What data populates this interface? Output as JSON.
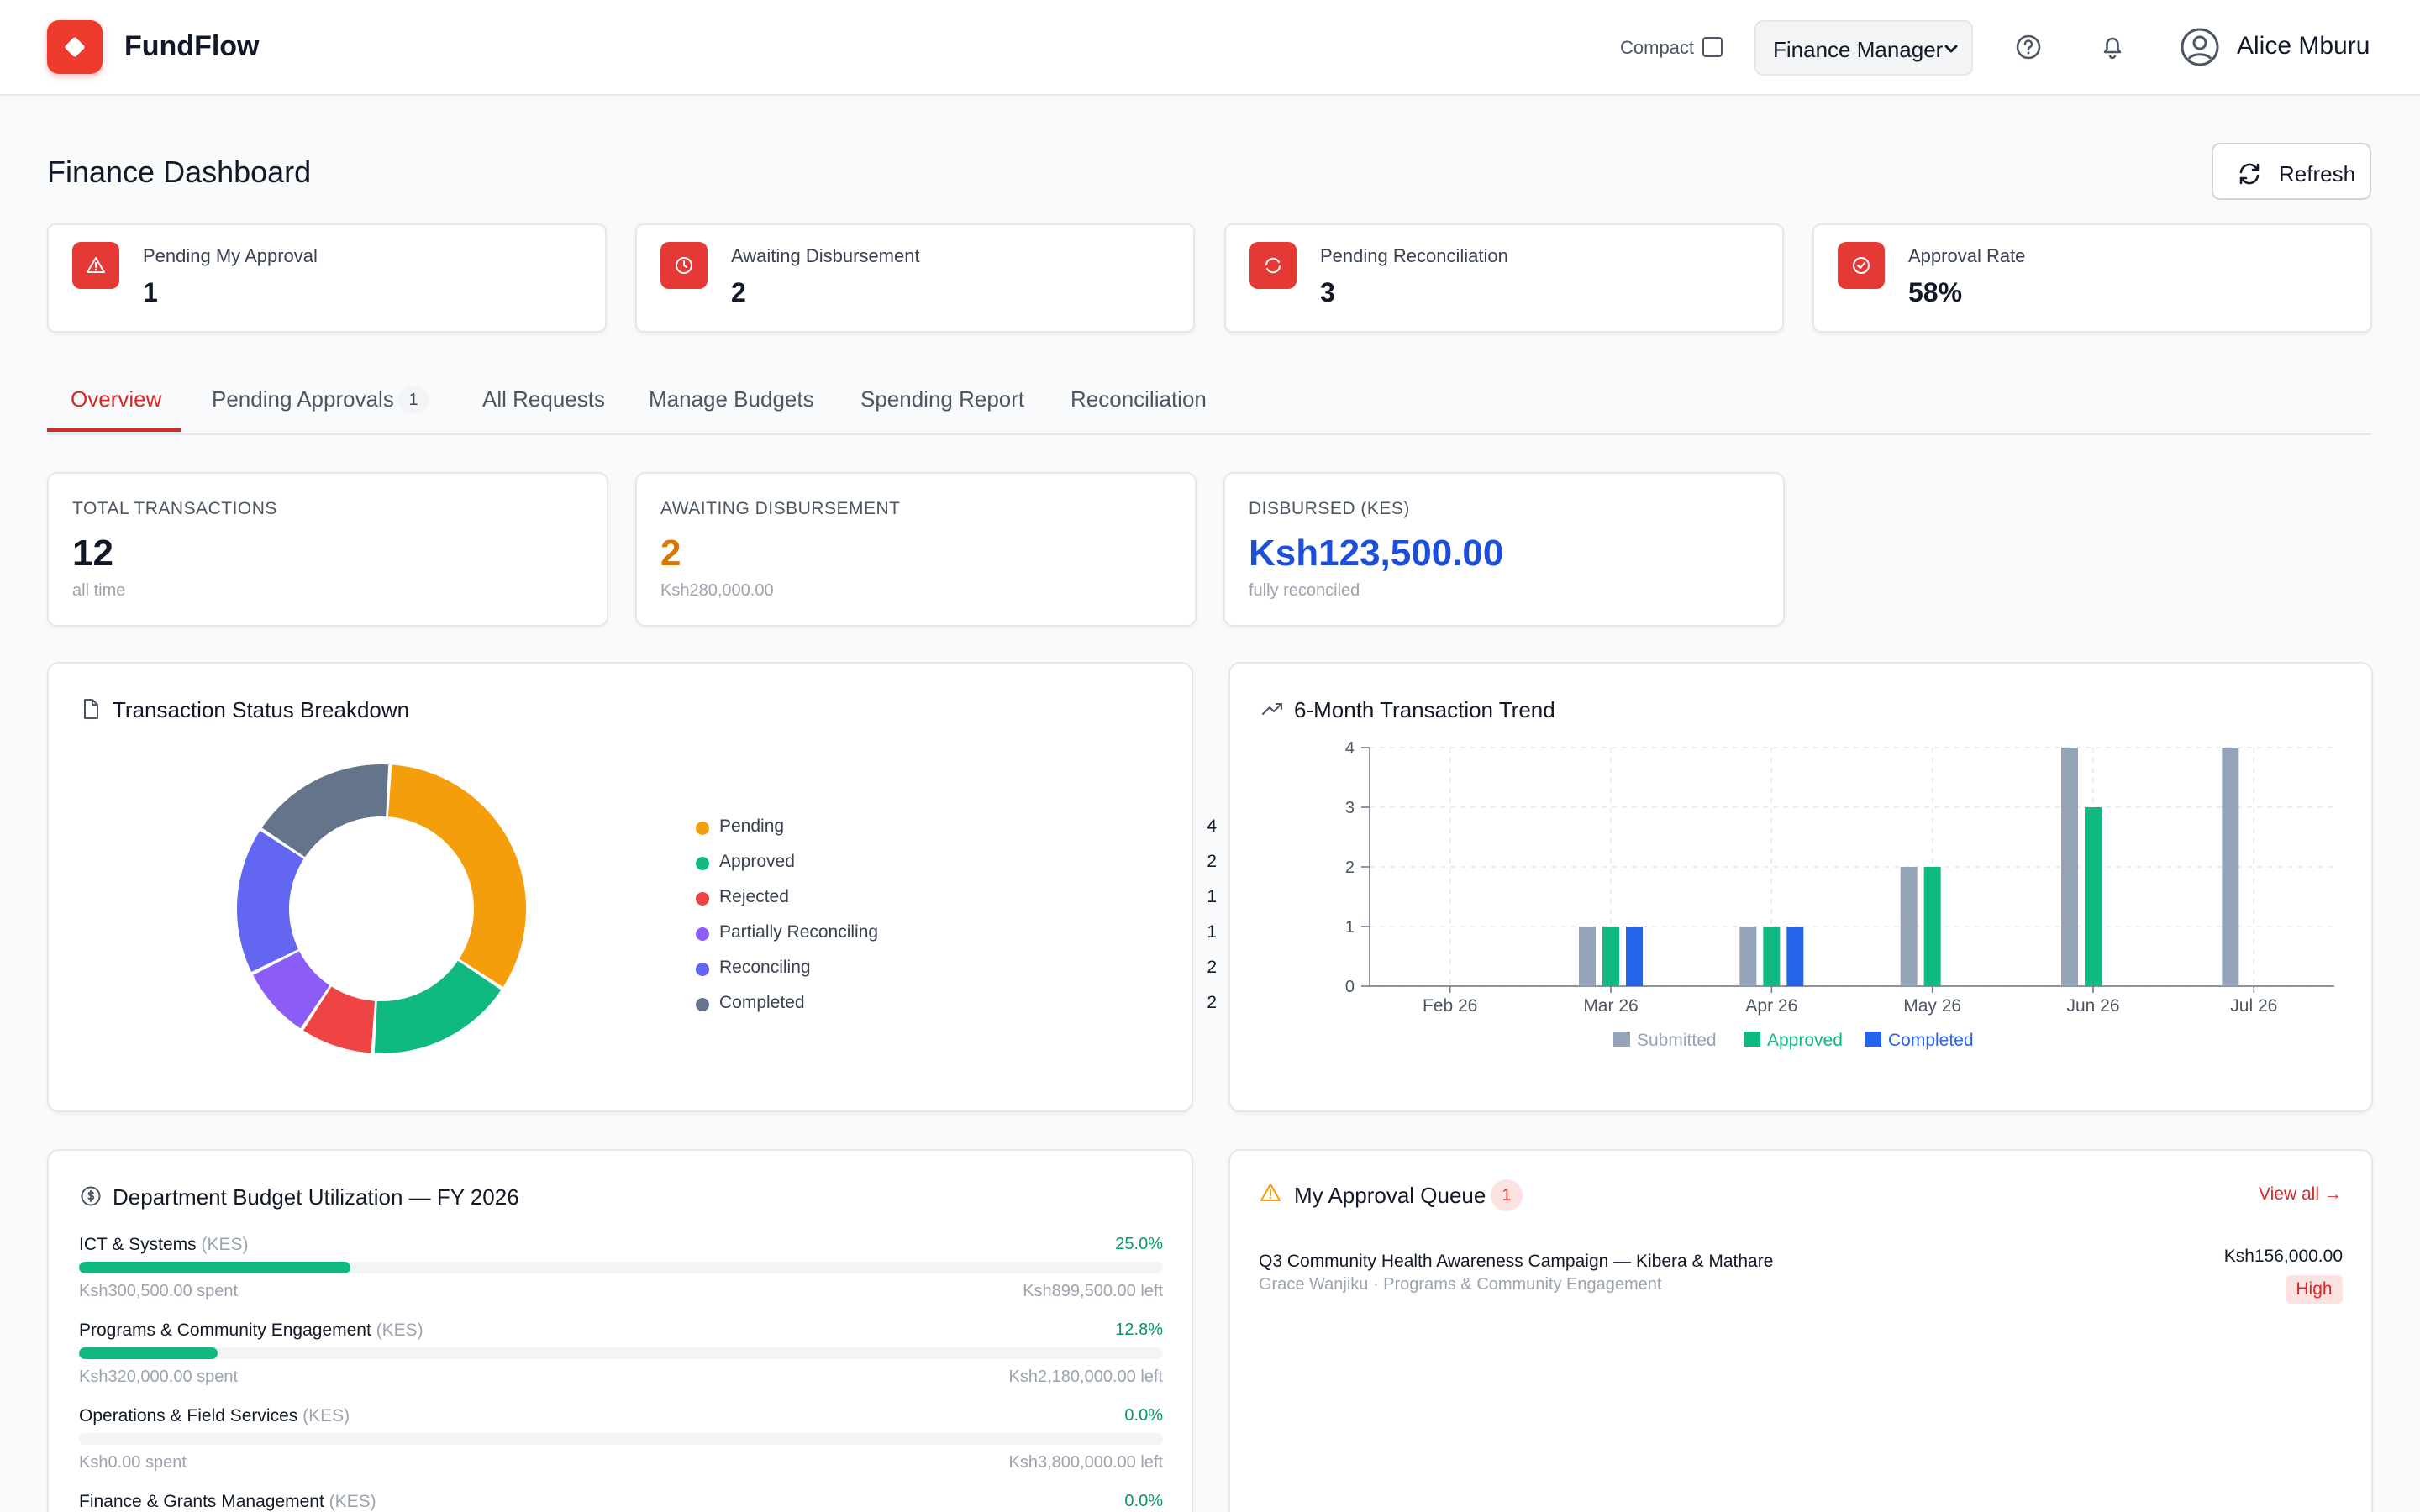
{
  "app": {
    "name": "FundFlow",
    "brand_color": "#ef3b2d"
  },
  "header": {
    "compact_label": "Compact",
    "compact_checked": false,
    "role_selected": "Finance Manager",
    "help_icon": "help-circle-icon",
    "notifications_icon": "bell-icon",
    "user_name": "Alice Mburu"
  },
  "page": {
    "title": "Finance Dashboard",
    "refresh_label": "Refresh"
  },
  "stats": [
    {
      "label": "Pending My Approval",
      "value": "1",
      "icon": "alert-triangle-icon"
    },
    {
      "label": "Awaiting Disbursement",
      "value": "2",
      "icon": "clock-icon"
    },
    {
      "label": "Pending Reconciliation",
      "value": "3",
      "icon": "refresh-icon"
    },
    {
      "label": "Approval Rate",
      "value": "58%",
      "icon": "check-circle-icon"
    }
  ],
  "tabs": [
    {
      "label": "Overview",
      "active": true
    },
    {
      "label": "Pending Approvals",
      "badge": "1"
    },
    {
      "label": "All Requests"
    },
    {
      "label": "Manage Budgets"
    },
    {
      "label": "Spending Report"
    },
    {
      "label": "Reconciliation"
    }
  ],
  "metrics": [
    {
      "label": "TOTAL TRANSACTIONS",
      "value": "12",
      "sub": "all time",
      "color": "#111827"
    },
    {
      "label": "AWAITING DISBURSEMENT",
      "value": "2",
      "sub": "Ksh280,000.00",
      "color": "#d97706"
    },
    {
      "label": "DISBURSED (KES)",
      "value": "Ksh123,500.00",
      "sub": "fully reconciled",
      "color": "#1d4ed8"
    }
  ],
  "status_breakdown": {
    "title": "Transaction Status Breakdown",
    "items": [
      {
        "label": "Pending",
        "count": "4",
        "color": "#f59e0b"
      },
      {
        "label": "Approved",
        "count": "2",
        "color": "#10b981"
      },
      {
        "label": "Rejected",
        "count": "1",
        "color": "#ef4444"
      },
      {
        "label": "Partially Reconciling",
        "count": "1",
        "color": "#8b5cf6"
      },
      {
        "label": "Reconciling",
        "count": "2",
        "color": "#6366f1"
      },
      {
        "label": "Completed",
        "count": "2",
        "color": "#64748b"
      }
    ]
  },
  "chart_data": {
    "type": "bar",
    "title": "6-Month Transaction Trend",
    "categories": [
      "Feb 26",
      "Mar 26",
      "Apr 26",
      "May 26",
      "Jun 26",
      "Jul 26"
    ],
    "ylim": [
      0,
      4
    ],
    "yticks": [
      "0",
      "1",
      "2",
      "3",
      "4"
    ],
    "grid": true,
    "legend_position": "bottom",
    "series": [
      {
        "name": "Submitted",
        "color": "#94a3b8",
        "values": [
          0,
          1,
          1,
          2,
          4,
          4
        ]
      },
      {
        "name": "Approved",
        "color": "#10b981",
        "values": [
          0,
          1,
          1,
          2,
          3,
          0
        ]
      },
      {
        "name": "Completed",
        "color": "#2563eb",
        "values": [
          0,
          1,
          1,
          0,
          0,
          0
        ]
      }
    ]
  },
  "budget": {
    "title": "Department Budget Utilization — FY 2026",
    "unit": "(KES)",
    "items": [
      {
        "name": "ICT & Systems",
        "pct": "25.0%",
        "fill": 0.25,
        "spent": "Ksh300,500.00 spent",
        "left": "Ksh899,500.00 left"
      },
      {
        "name": "Programs & Community Engagement",
        "pct": "12.8%",
        "fill": 0.128,
        "spent": "Ksh320,000.00 spent",
        "left": "Ksh2,180,000.00 left"
      },
      {
        "name": "Operations & Field Services",
        "pct": "0.0%",
        "fill": 0,
        "spent": "Ksh0.00 spent",
        "left": "Ksh3,800,000.00 left"
      },
      {
        "name": "Finance & Grants Management",
        "pct": "0.0%",
        "fill": 0,
        "spent": "",
        "left": ""
      }
    ]
  },
  "approval_queue": {
    "title": "My Approval Queue",
    "count": "1",
    "view_all": "View all →",
    "items": [
      {
        "title": "Q3 Community Health Awareness Campaign — Kibera & Mathare",
        "subtitle": "Grace Wanjiku · Programs & Community Engagement",
        "amount": "Ksh156,000.00",
        "priority": "High"
      }
    ]
  }
}
